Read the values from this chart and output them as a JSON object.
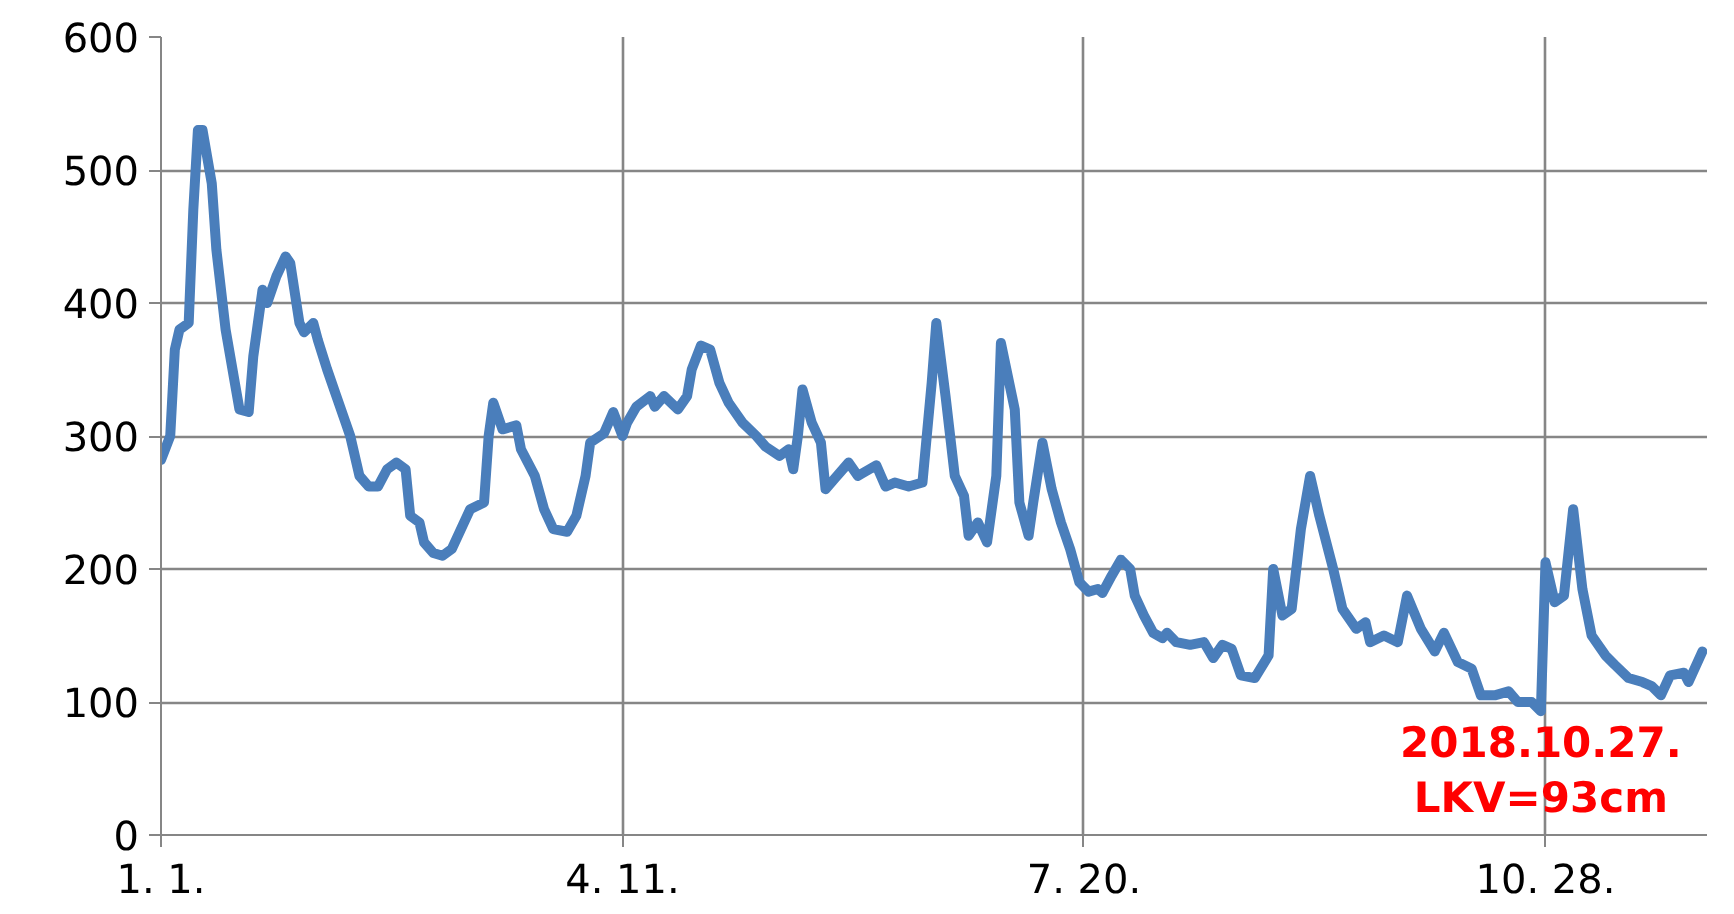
{
  "chart_data": {
    "type": "line",
    "x": [
      "2018-01-01",
      "2018-01-03",
      "2018-01-04",
      "2018-01-05",
      "2018-01-07",
      "2018-01-08",
      "2018-01-09",
      "2018-01-10",
      "2018-01-12",
      "2018-01-13",
      "2018-01-15",
      "2018-01-17",
      "2018-01-18",
      "2018-01-20",
      "2018-01-21",
      "2018-01-23",
      "2018-01-24",
      "2018-01-26",
      "2018-01-28",
      "2018-01-29",
      "2018-01-31",
      "2018-02-01",
      "2018-02-03",
      "2018-02-04",
      "2018-02-06",
      "2018-02-08",
      "2018-02-10",
      "2018-02-11",
      "2018-02-13",
      "2018-02-15",
      "2018-02-17",
      "2018-02-19",
      "2018-02-21",
      "2018-02-23",
      "2018-02-24",
      "2018-02-26",
      "2018-02-27",
      "2018-03-01",
      "2018-03-03",
      "2018-03-05",
      "2018-03-07",
      "2018-03-09",
      "2018-03-12",
      "2018-03-13",
      "2018-03-14",
      "2018-03-16",
      "2018-03-19",
      "2018-03-20",
      "2018-03-23",
      "2018-03-25",
      "2018-03-27",
      "2018-03-30",
      "2018-04-01",
      "2018-04-03",
      "2018-04-04",
      "2018-04-07",
      "2018-04-09",
      "2018-04-11",
      "2018-04-12",
      "2018-04-14",
      "2018-04-17",
      "2018-04-18",
      "2018-04-20",
      "2018-04-23",
      "2018-04-25",
      "2018-04-26",
      "2018-04-28",
      "2018-04-30",
      "2018-05-02",
      "2018-05-04",
      "2018-05-07",
      "2018-05-10",
      "2018-05-12",
      "2018-05-15",
      "2018-05-17",
      "2018-05-18",
      "2018-05-19",
      "2018-05-20",
      "2018-05-22",
      "2018-05-24",
      "2018-05-25",
      "2018-05-27",
      "2018-05-30",
      "2018-06-01",
      "2018-06-02",
      "2018-06-05",
      "2018-06-07",
      "2018-06-09",
      "2018-06-12",
      "2018-06-15",
      "2018-06-17",
      "2018-06-18",
      "2018-06-20",
      "2018-06-22",
      "2018-06-24",
      "2018-06-25",
      "2018-06-27",
      "2018-06-29",
      "2018-07-01",
      "2018-07-02",
      "2018-07-05",
      "2018-07-06",
      "2018-07-08",
      "2018-07-09",
      "2018-07-11",
      "2018-07-13",
      "2018-07-15",
      "2018-07-17",
      "2018-07-19",
      "2018-07-21",
      "2018-07-23",
      "2018-07-24",
      "2018-07-26",
      "2018-07-28",
      "2018-07-30",
      "2018-07-31",
      "2018-08-02",
      "2018-08-04",
      "2018-08-06",
      "2018-08-07",
      "2018-08-09",
      "2018-08-12",
      "2018-08-15",
      "2018-08-17",
      "2018-08-19",
      "2018-08-21",
      "2018-08-23",
      "2018-08-26",
      "2018-08-29",
      "2018-08-30",
      "2018-09-01",
      "2018-09-03",
      "2018-09-05",
      "2018-09-07",
      "2018-09-09",
      "2018-09-12",
      "2018-09-14",
      "2018-09-17",
      "2018-09-19",
      "2018-09-20",
      "2018-09-23",
      "2018-09-26",
      "2018-09-28",
      "2018-10-01",
      "2018-10-04",
      "2018-10-06",
      "2018-10-09",
      "2018-10-12",
      "2018-10-14",
      "2018-10-17",
      "2018-10-20",
      "2018-10-22",
      "2018-10-25",
      "2018-10-27",
      "2018-10-28",
      "2018-10-30",
      "2018-11-01",
      "2018-11-03",
      "2018-11-05",
      "2018-11-07",
      "2018-11-10",
      "2018-11-12",
      "2018-11-15",
      "2018-11-18",
      "2018-11-20",
      "2018-11-22",
      "2018-11-24",
      "2018-11-27",
      "2018-11-28",
      "2018-12-01"
    ],
    "series": [
      {
        "color": "#4a7ebb",
        "values": [
          282,
          300,
          365,
          380,
          385,
          470,
          530,
          530,
          490,
          440,
          380,
          340,
          320,
          318,
          360,
          410,
          400,
          420,
          435,
          430,
          385,
          378,
          385,
          372,
          350,
          330,
          310,
          300,
          270,
          262,
          262,
          275,
          280,
          275,
          240,
          235,
          220,
          212,
          210,
          215,
          230,
          245,
          250,
          300,
          325,
          305,
          308,
          290,
          270,
          245,
          230,
          228,
          240,
          270,
          295,
          302,
          318,
          300,
          310,
          322,
          330,
          322,
          330,
          320,
          330,
          350,
          368,
          365,
          340,
          325,
          310,
          300,
          292,
          285,
          290,
          275,
          300,
          335,
          310,
          295,
          260,
          268,
          280,
          270,
          272,
          278,
          262,
          265,
          262,
          265,
          340,
          385,
          330,
          270,
          255,
          225,
          235,
          220,
          270,
          370,
          320,
          250,
          225,
          250,
          295,
          260,
          235,
          215,
          190,
          183,
          185,
          182,
          195,
          207,
          200,
          180,
          165,
          152,
          148,
          152,
          145,
          143,
          145,
          133,
          143,
          140,
          120,
          118,
          135,
          200,
          165,
          170,
          230,
          270,
          240,
          200,
          170,
          155,
          160,
          145,
          150,
          145,
          180,
          155,
          138,
          152,
          130,
          125,
          105,
          105,
          108,
          100,
          100,
          93,
          205,
          175,
          180,
          245,
          185,
          150,
          135,
          128,
          118,
          115,
          112,
          105,
          120,
          122,
          115,
          138
        ]
      }
    ],
    "xlim": [
      "2018-01-01",
      "2018-12-02"
    ],
    "xticks": [
      {
        "value": "2018-01-01",
        "label": "1. 1."
      },
      {
        "value": "2018-04-11",
        "label": "4. 11."
      },
      {
        "value": "2018-07-20",
        "label": "7. 20."
      },
      {
        "value": "2018-10-28",
        "label": "10. 28."
      }
    ],
    "ylim": [
      0,
      600
    ],
    "yticks": [
      0,
      100,
      200,
      300,
      400,
      500,
      600
    ],
    "grid": true,
    "annotations": [
      {
        "text": "2018.10.27.\nLKV=93cm",
        "x": "2018-10-27",
        "y": 93
      }
    ]
  }
}
